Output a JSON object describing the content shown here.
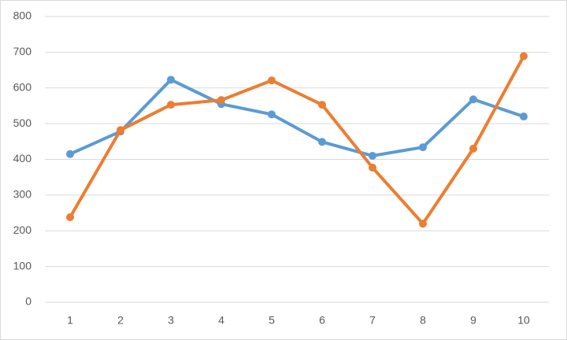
{
  "chart_data": {
    "type": "line",
    "categories": [
      "1",
      "2",
      "3",
      "4",
      "5",
      "6",
      "7",
      "8",
      "9",
      "10"
    ],
    "series": [
      {
        "color": "#5b9bd5",
        "values": [
          415,
          478,
          623,
          555,
          526,
          449,
          410,
          434,
          568,
          520
        ]
      },
      {
        "color": "#ed7d31",
        "values": [
          238,
          482,
          553,
          566,
          621,
          553,
          377,
          220,
          430,
          689
        ]
      }
    ],
    "ylim": [
      0,
      800
    ],
    "yticks": [
      0,
      100,
      200,
      300,
      400,
      500,
      600,
      700,
      800
    ],
    "grid": true
  }
}
